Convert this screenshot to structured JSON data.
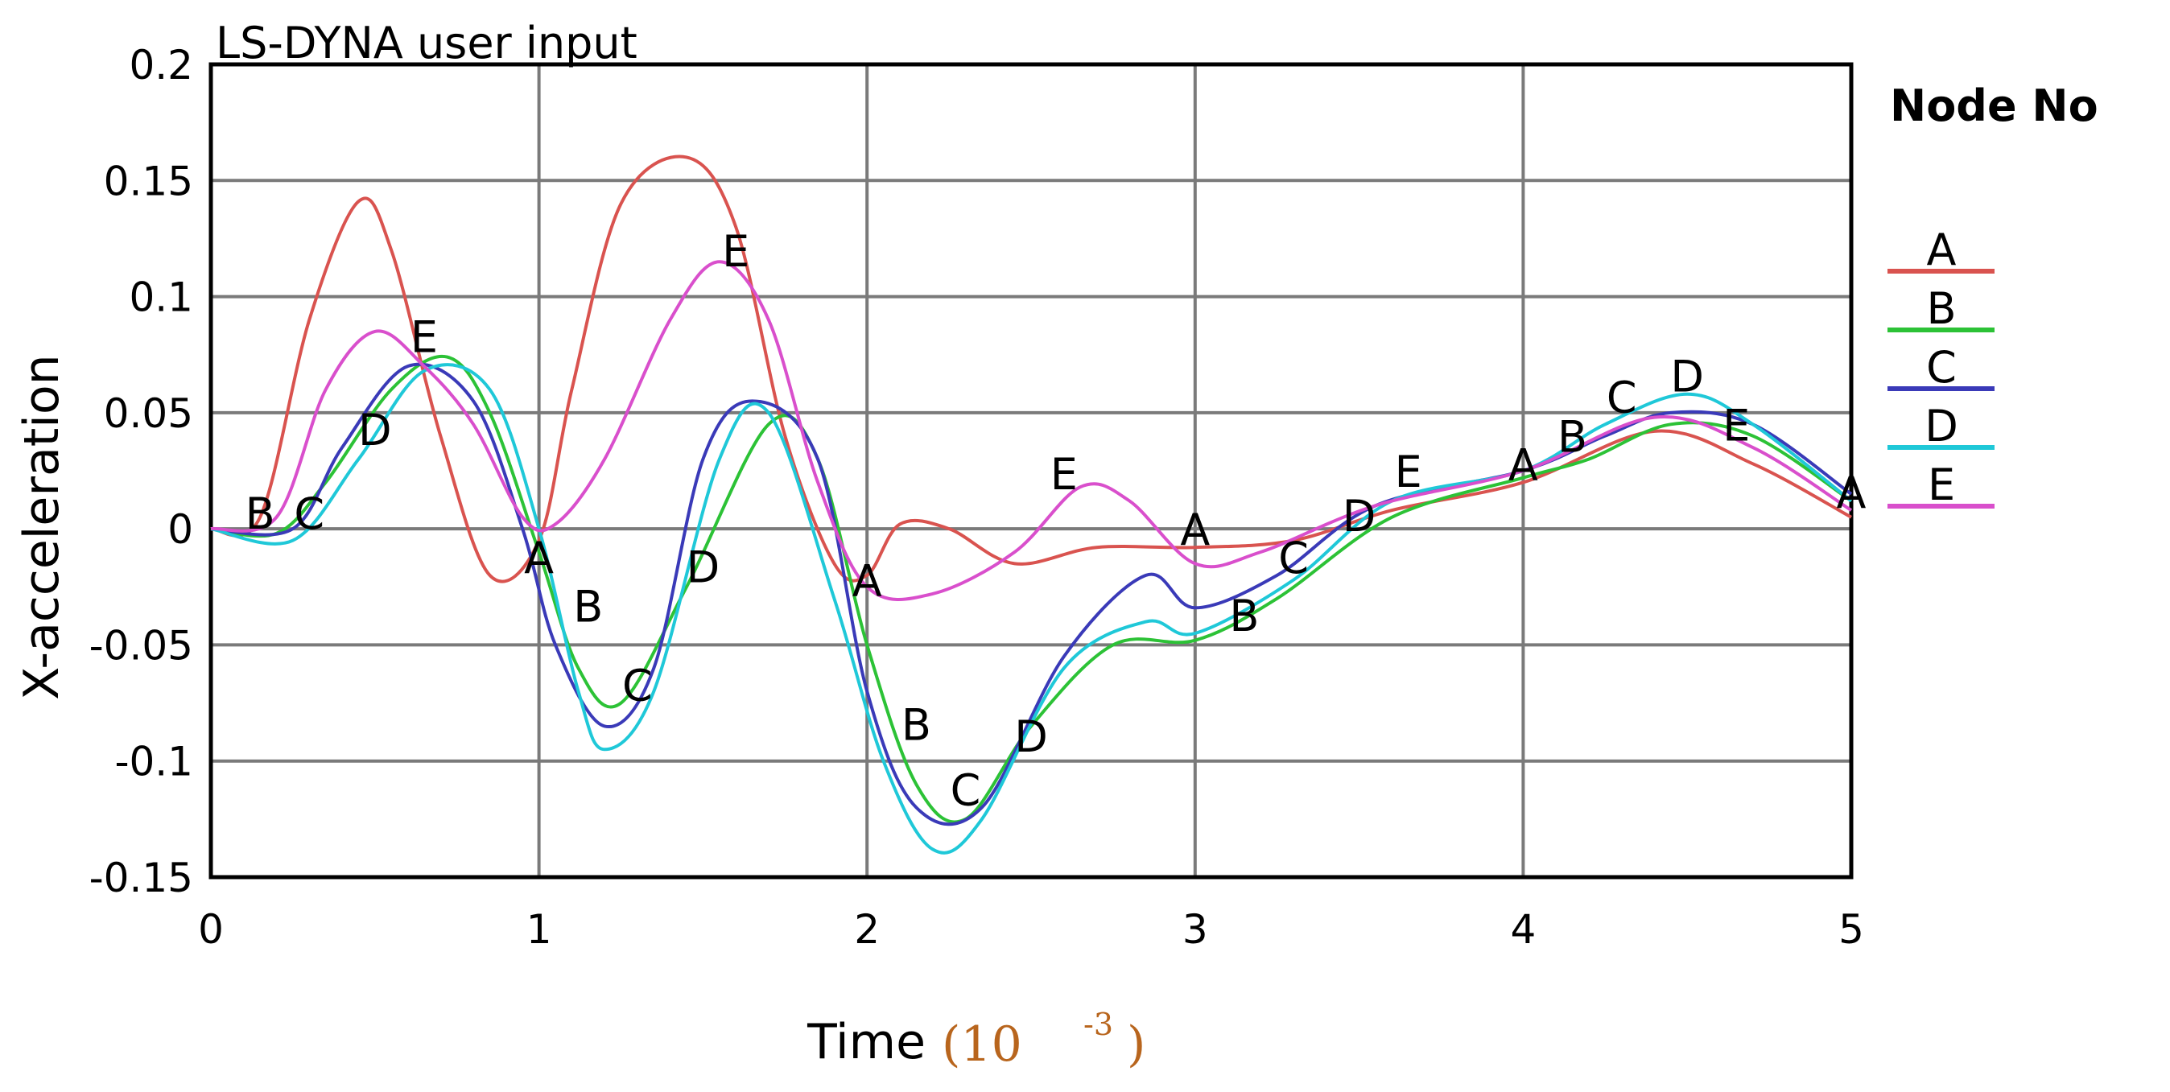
{
  "chart_data": {
    "type": "line",
    "title": "LS-DYNA user input",
    "xlabel": "Time",
    "xlabel_unit_base": "(10",
    "xlabel_unit_exp": "-3",
    "xlabel_unit_close": ")",
    "ylabel": "X-acceleration",
    "xlim": [
      0,
      5
    ],
    "ylim": [
      -0.15,
      0.2
    ],
    "xticks": [
      0,
      1,
      2,
      3,
      4,
      5
    ],
    "xtick_labels": [
      "0",
      "1",
      "2",
      "3",
      "4",
      "5"
    ],
    "yticks": [
      0.2,
      0.15,
      0.1,
      0.05,
      0,
      -0.05,
      -0.1,
      -0.15
    ],
    "ytick_labels": [
      "0.2",
      "0.15",
      "0.1",
      "0.05",
      "0",
      "-0.05",
      "-0.1",
      "-0.15"
    ],
    "grid": true,
    "legend_title": "Node No",
    "legend_position": "right",
    "series": [
      {
        "name": "A",
        "color": "#d9534f",
        "x": [
          0,
          0.15,
          0.3,
          0.45,
          0.55,
          0.7,
          0.85,
          1.0,
          1.1,
          1.25,
          1.45,
          1.6,
          1.75,
          1.9,
          2.0,
          2.1,
          2.25,
          2.45,
          2.7,
          3.0,
          3.3,
          3.6,
          4.0,
          4.4,
          4.7,
          5.0
        ],
        "y": [
          0,
          0.005,
          0.09,
          0.141,
          0.12,
          0.04,
          -0.02,
          -0.005,
          0.06,
          0.14,
          0.16,
          0.13,
          0.04,
          -0.015,
          -0.02,
          0.002,
          0.0,
          -0.015,
          -0.008,
          -0.008,
          -0.005,
          0.008,
          0.02,
          0.042,
          0.028,
          0.005
        ],
        "labels": [
          {
            "x": 1.0,
            "y": -0.012
          },
          {
            "x": 2.0,
            "y": -0.022
          },
          {
            "x": 3.0,
            "y": 0.0
          },
          {
            "x": 4.0,
            "y": 0.028
          },
          {
            "x": 5.0,
            "y": 0.016
          }
        ]
      },
      {
        "name": "B",
        "color": "#2cc236",
        "x": [
          0,
          0.2,
          0.35,
          0.55,
          0.72,
          0.85,
          1.0,
          1.12,
          1.25,
          1.45,
          1.7,
          1.85,
          2.0,
          2.15,
          2.3,
          2.5,
          2.75,
          3.0,
          3.25,
          3.6,
          4.0,
          4.2,
          4.45,
          4.7,
          5.0
        ],
        "y": [
          0,
          -0.002,
          0.02,
          0.06,
          0.074,
          0.05,
          -0.01,
          -0.06,
          -0.075,
          -0.025,
          0.045,
          0.03,
          -0.05,
          -0.11,
          -0.125,
          -0.085,
          -0.05,
          -0.048,
          -0.03,
          0.005,
          0.022,
          0.03,
          0.045,
          0.04,
          0.012
        ],
        "labels": [
          {
            "x": 0.15,
            "y": 0.007
          },
          {
            "x": 1.15,
            "y": -0.033
          },
          {
            "x": 2.15,
            "y": -0.084
          },
          {
            "x": 3.15,
            "y": -0.037
          },
          {
            "x": 4.15,
            "y": 0.04
          }
        ]
      },
      {
        "name": "C",
        "color": "#3a3ab8",
        "x": [
          0,
          0.25,
          0.4,
          0.6,
          0.8,
          0.95,
          1.05,
          1.2,
          1.35,
          1.5,
          1.65,
          1.85,
          2.0,
          2.15,
          2.35,
          2.6,
          2.85,
          3.0,
          3.25,
          3.55,
          4.0,
          4.25,
          4.45,
          4.7,
          5.0
        ],
        "y": [
          0,
          0,
          0.035,
          0.07,
          0.055,
          0.0,
          -0.05,
          -0.085,
          -0.06,
          0.03,
          0.055,
          0.03,
          -0.07,
          -0.12,
          -0.12,
          -0.055,
          -0.02,
          -0.034,
          -0.02,
          0.01,
          0.025,
          0.04,
          0.05,
          0.045,
          0.015
        ],
        "labels": [
          {
            "x": 0.3,
            "y": 0.007
          },
          {
            "x": 1.3,
            "y": -0.067
          },
          {
            "x": 2.3,
            "y": -0.112
          },
          {
            "x": 3.3,
            "y": -0.012
          },
          {
            "x": 4.3,
            "y": 0.057
          }
        ]
      },
      {
        "name": "D",
        "color": "#1fc8d8",
        "x": [
          0,
          0.25,
          0.45,
          0.65,
          0.85,
          1.0,
          1.12,
          1.2,
          1.35,
          1.55,
          1.7,
          1.9,
          2.05,
          2.2,
          2.35,
          2.6,
          2.85,
          3.0,
          3.3,
          3.6,
          4.0,
          4.25,
          4.5,
          4.7,
          5.0
        ],
        "y": [
          0,
          -0.005,
          0.03,
          0.068,
          0.06,
          0.0,
          -0.07,
          -0.095,
          -0.07,
          0.03,
          0.05,
          -0.03,
          -0.1,
          -0.138,
          -0.125,
          -0.06,
          -0.04,
          -0.045,
          -0.022,
          0.012,
          0.025,
          0.045,
          0.058,
          0.045,
          0.012
        ],
        "labels": [
          {
            "x": 0.5,
            "y": 0.043
          },
          {
            "x": 1.5,
            "y": -0.016
          },
          {
            "x": 2.5,
            "y": -0.089
          },
          {
            "x": 3.5,
            "y": 0.006
          },
          {
            "x": 4.5,
            "y": 0.066
          }
        ]
      },
      {
        "name": "E",
        "color": "#d94fcc",
        "x": [
          0,
          0.2,
          0.35,
          0.5,
          0.65,
          0.8,
          0.95,
          1.05,
          1.2,
          1.4,
          1.55,
          1.7,
          1.85,
          2.0,
          2.2,
          2.45,
          2.65,
          2.8,
          3.0,
          3.2,
          3.55,
          4.0,
          4.4,
          4.7,
          5.0
        ],
        "y": [
          0,
          0.005,
          0.06,
          0.085,
          0.07,
          0.045,
          0.005,
          0.002,
          0.03,
          0.09,
          0.115,
          0.09,
          0.02,
          -0.025,
          -0.028,
          -0.01,
          0.018,
          0.012,
          -0.015,
          -0.01,
          0.01,
          0.025,
          0.048,
          0.035,
          0.008
        ],
        "labels": [
          {
            "x": 0.65,
            "y": 0.083
          },
          {
            "x": 1.6,
            "y": 0.12
          },
          {
            "x": 2.6,
            "y": 0.024
          },
          {
            "x": 3.65,
            "y": 0.025
          },
          {
            "x": 4.65,
            "y": 0.045
          }
        ]
      }
    ]
  }
}
